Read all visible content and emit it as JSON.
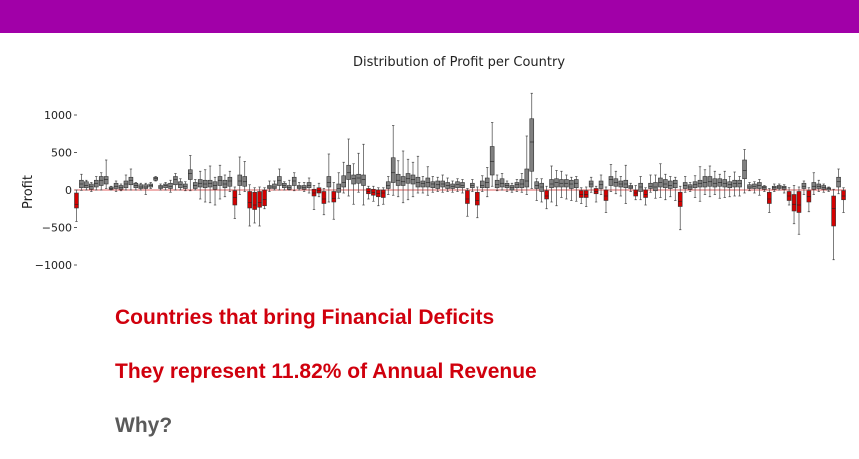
{
  "colors": {
    "banner": "#a100a8",
    "profit_box": "#808080",
    "deficit_box": "#d50000",
    "zero_line": "#e06060",
    "headline_text": "#d0000d",
    "question_text": "#5a5a5a"
  },
  "text": {
    "line1": "Countries that bring Financial Deficits",
    "line2": "They represent 11.82% of Annual Revenue",
    "line3": "Why?"
  },
  "chart_data": {
    "type": "boxplot",
    "title": "Distribution of Profit per Country",
    "xlabel": "",
    "ylabel": "Profit",
    "ylim": [
      -1150,
      1350
    ],
    "yticks": [
      1000,
      500,
      0,
      -500,
      -1000
    ],
    "ytick_labels": [
      "1000",
      "500",
      "0",
      "−500",
      "−1000"
    ],
    "grid": false,
    "legend": "none",
    "boxes": [
      [
        -420,
        -240,
        -190,
        -40,
        0
      ],
      [
        -5,
        30,
        80,
        130,
        210
      ],
      [
        0,
        30,
        60,
        110,
        130
      ],
      [
        -20,
        10,
        50,
        80,
        100
      ],
      [
        0,
        40,
        90,
        130,
        180
      ],
      [
        0,
        60,
        130,
        180,
        230
      ],
      [
        20,
        80,
        140,
        180,
        400
      ],
      [
        0,
        10,
        20,
        40,
        50
      ],
      [
        -20,
        20,
        50,
        90,
        120
      ],
      [
        -10,
        10,
        30,
        60,
        80
      ],
      [
        0,
        30,
        80,
        120,
        200
      ],
      [
        0,
        70,
        130,
        170,
        280
      ],
      [
        0,
        30,
        60,
        90,
        100
      ],
      [
        0,
        20,
        40,
        70,
        90
      ],
      [
        -60,
        20,
        40,
        70,
        90
      ],
      [
        20,
        40,
        60,
        80,
        100
      ],
      [
        120,
        130,
        150,
        170,
        180
      ],
      [
        0,
        20,
        40,
        60,
        80
      ],
      [
        0,
        30,
        60,
        80,
        100
      ],
      [
        -30,
        20,
        50,
        90,
        130
      ],
      [
        0,
        70,
        140,
        180,
        220
      ],
      [
        0,
        30,
        70,
        110,
        150
      ],
      [
        -10,
        20,
        50,
        80,
        110
      ],
      [
        -10,
        140,
        220,
        270,
        460
      ],
      [
        0,
        20,
        60,
        100,
        140
      ],
      [
        -120,
        40,
        90,
        140,
        250
      ],
      [
        -160,
        30,
        80,
        130,
        270
      ],
      [
        -170,
        40,
        90,
        130,
        320
      ],
      [
        -200,
        10,
        60,
        110,
        170
      ],
      [
        -120,
        60,
        130,
        180,
        330
      ],
      [
        -90,
        30,
        80,
        130,
        200
      ],
      [
        -20,
        50,
        120,
        170,
        250
      ],
      [
        -380,
        -200,
        -100,
        -10,
        40
      ],
      [
        -60,
        60,
        120,
        200,
        440
      ],
      [
        -20,
        50,
        110,
        180,
        380
      ],
      [
        -480,
        -240,
        -170,
        -20,
        70
      ],
      [
        -440,
        -260,
        -200,
        -30,
        30
      ],
      [
        -480,
        -230,
        -170,
        -20,
        40
      ],
      [
        -250,
        -210,
        -130,
        0,
        30
      ],
      [
        -20,
        20,
        40,
        60,
        120
      ],
      [
        0,
        20,
        40,
        80,
        120
      ],
      [
        0,
        60,
        130,
        180,
        280
      ],
      [
        0,
        30,
        60,
        90,
        110
      ],
      [
        0,
        10,
        30,
        60,
        130
      ],
      [
        -10,
        60,
        120,
        170,
        230
      ],
      [
        0,
        20,
        40,
        60,
        100
      ],
      [
        -20,
        10,
        30,
        60,
        100
      ],
      [
        -40,
        30,
        60,
        100,
        160
      ],
      [
        -260,
        -80,
        -40,
        10,
        60
      ],
      [
        -90,
        -40,
        -10,
        30,
        90
      ],
      [
        -330,
        -180,
        -120,
        -20,
        20
      ],
      [
        -160,
        40,
        100,
        180,
        480
      ],
      [
        -390,
        -160,
        -110,
        -20,
        100
      ],
      [
        -110,
        -30,
        20,
        80,
        230
      ],
      [
        -40,
        40,
        100,
        190,
        370
      ],
      [
        -80,
        140,
        230,
        330,
        680
      ],
      [
        -190,
        80,
        150,
        200,
        350
      ],
      [
        -30,
        90,
        160,
        210,
        490
      ],
      [
        -200,
        60,
        140,
        200,
        610
      ],
      [
        -120,
        -50,
        -20,
        20,
        50
      ],
      [
        -150,
        -70,
        -30,
        10,
        50
      ],
      [
        -210,
        -90,
        -50,
        0,
        30
      ],
      [
        -190,
        -100,
        -40,
        0,
        30
      ],
      [
        -60,
        20,
        60,
        110,
        180
      ],
      [
        -70,
        100,
        230,
        430,
        860
      ],
      [
        -90,
        60,
        130,
        210,
        390
      ],
      [
        -170,
        60,
        110,
        180,
        520
      ],
      [
        -130,
        90,
        150,
        220,
        410
      ],
      [
        -90,
        80,
        140,
        200,
        370
      ],
      [
        -40,
        40,
        100,
        170,
        450
      ],
      [
        -40,
        40,
        90,
        120,
        180
      ],
      [
        -70,
        40,
        100,
        160,
        310
      ],
      [
        -30,
        30,
        80,
        110,
        180
      ],
      [
        -20,
        20,
        70,
        120,
        170
      ],
      [
        -30,
        40,
        80,
        120,
        200
      ],
      [
        -20,
        20,
        60,
        100,
        160
      ],
      [
        -30,
        20,
        50,
        80,
        120
      ],
      [
        -20,
        30,
        70,
        110,
        150
      ],
      [
        -40,
        30,
        60,
        100,
        140
      ],
      [
        -350,
        -180,
        -120,
        -10,
        20
      ],
      [
        -20,
        30,
        60,
        90,
        140
      ],
      [
        -370,
        -200,
        -140,
        -30,
        40
      ],
      [
        -20,
        30,
        60,
        120,
        190
      ],
      [
        -90,
        30,
        100,
        160,
        300
      ],
      [
        50,
        200,
        380,
        580,
        900
      ],
      [
        -10,
        30,
        70,
        130,
        200
      ],
      [
        0,
        40,
        90,
        150,
        220
      ],
      [
        -20,
        30,
        60,
        90,
        120
      ],
      [
        -30,
        0,
        30,
        60,
        90
      ],
      [
        -20,
        30,
        70,
        100,
        140
      ],
      [
        -30,
        30,
        80,
        140,
        220
      ],
      [
        -60,
        40,
        120,
        280,
        720
      ],
      [
        20,
        250,
        640,
        950,
        1290
      ],
      [
        -140,
        20,
        60,
        110,
        150
      ],
      [
        -160,
        -20,
        40,
        90,
        150
      ],
      [
        -250,
        -120,
        -80,
        -10,
        50
      ],
      [
        -160,
        30,
        80,
        140,
        320
      ],
      [
        -210,
        40,
        100,
        150,
        260
      ],
      [
        -100,
        40,
        90,
        140,
        250
      ],
      [
        -120,
        40,
        90,
        140,
        200
      ],
      [
        -140,
        20,
        80,
        130,
        170
      ],
      [
        -150,
        30,
        90,
        140,
        180
      ],
      [
        -180,
        -100,
        -60,
        -10,
        30
      ],
      [
        -220,
        -100,
        -60,
        -10,
        40
      ],
      [
        -30,
        40,
        80,
        120,
        170
      ],
      [
        -160,
        -50,
        -20,
        20,
        50
      ],
      [
        -60,
        20,
        70,
        120,
        200
      ],
      [
        -300,
        -140,
        -80,
        0,
        40
      ],
      [
        -20,
        60,
        140,
        180,
        340
      ],
      [
        -50,
        50,
        100,
        150,
        250
      ],
      [
        -80,
        40,
        80,
        120,
        180
      ],
      [
        -180,
        30,
        80,
        130,
        330
      ],
      [
        -20,
        20,
        40,
        60,
        90
      ],
      [
        -130,
        -80,
        -40,
        0,
        60
      ],
      [
        -130,
        -20,
        40,
        90,
        180
      ],
      [
        -200,
        -100,
        -60,
        0,
        30
      ],
      [
        -30,
        20,
        50,
        90,
        200
      ],
      [
        -110,
        -10,
        40,
        100,
        200
      ],
      [
        -100,
        40,
        100,
        160,
        350
      ],
      [
        -130,
        30,
        80,
        140,
        210
      ],
      [
        -90,
        20,
        60,
        120,
        180
      ],
      [
        -140,
        30,
        90,
        130,
        170
      ],
      [
        -530,
        -220,
        -150,
        -30,
        50
      ],
      [
        -30,
        20,
        60,
        100,
        180
      ],
      [
        -20,
        10,
        40,
        70,
        100
      ],
      [
        -100,
        30,
        70,
        110,
        190
      ],
      [
        -150,
        40,
        90,
        130,
        310
      ],
      [
        -60,
        40,
        100,
        180,
        270
      ],
      [
        -90,
        50,
        110,
        180,
        320
      ],
      [
        -60,
        40,
        90,
        150,
        250
      ],
      [
        -110,
        50,
        100,
        150,
        210
      ],
      [
        -100,
        40,
        90,
        140,
        250
      ],
      [
        -90,
        30,
        70,
        110,
        180
      ],
      [
        -80,
        40,
        90,
        130,
        240
      ],
      [
        -80,
        40,
        90,
        130,
        180
      ],
      [
        -40,
        150,
        260,
        400,
        540
      ],
      [
        -10,
        20,
        40,
        70,
        100
      ],
      [
        -40,
        20,
        50,
        80,
        110
      ],
      [
        -70,
        20,
        60,
        100,
        140
      ],
      [
        -20,
        10,
        30,
        50,
        60
      ],
      [
        -300,
        -180,
        -120,
        -30,
        20
      ],
      [
        -20,
        10,
        30,
        50,
        80
      ],
      [
        0,
        20,
        40,
        60,
        80
      ],
      [
        -40,
        10,
        30,
        50,
        70
      ],
      [
        -200,
        -140,
        -80,
        -20,
        30
      ],
      [
        -450,
        -280,
        -190,
        -60,
        60
      ],
      [
        -590,
        -300,
        -200,
        -20,
        40
      ],
      [
        -60,
        20,
        50,
        90,
        120
      ],
      [
        -290,
        -160,
        -90,
        -10,
        30
      ],
      [
        -60,
        10,
        50,
        100,
        230
      ],
      [
        -20,
        20,
        50,
        80,
        130
      ],
      [
        -30,
        10,
        30,
        60,
        80
      ],
      [
        -20,
        0,
        20,
        30,
        40
      ],
      [
        -930,
        -480,
        -250,
        -80,
        10
      ],
      [
        -50,
        40,
        110,
        170,
        280
      ],
      [
        -300,
        -130,
        -80,
        -10,
        30
      ]
    ]
  }
}
